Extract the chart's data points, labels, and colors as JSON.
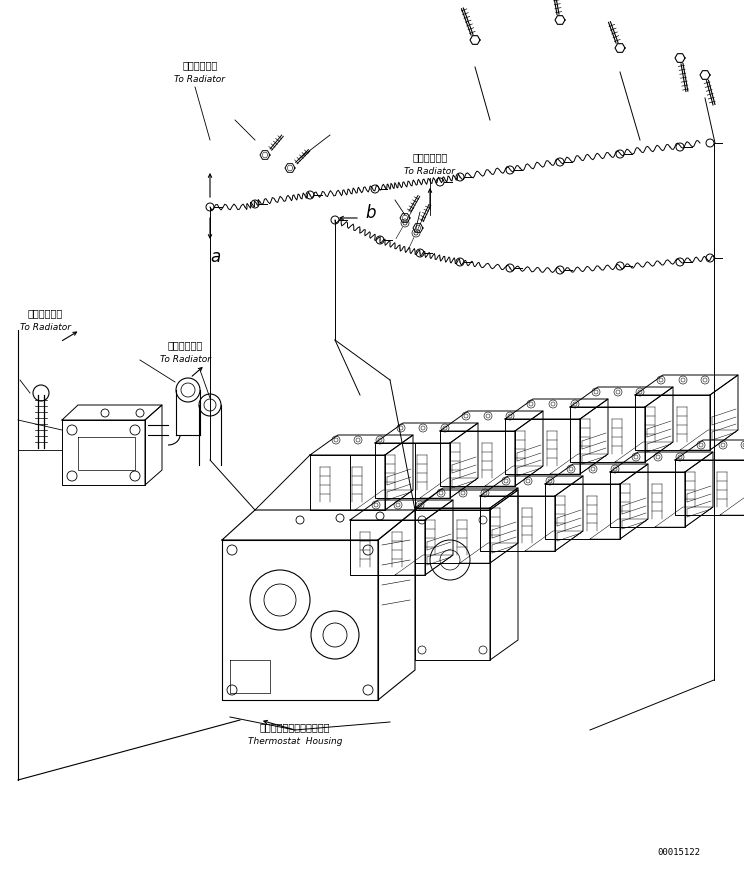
{
  "bg_color": "#ffffff",
  "line_color": "#000000",
  "fig_width": 7.44,
  "fig_height": 8.71,
  "dpi": 100,
  "part_number": "00015122",
  "labels": {
    "radiator_jp1": "ラジエータへ",
    "radiator_en1": "To Radiator",
    "radiator_jp2": "ラジエータへ",
    "radiator_en2": "To Radiator",
    "radiator_jp3": "ラジエータへ",
    "radiator_en3": "To Radiator",
    "radiator_jp4": "ラジエータへ",
    "radiator_en4": "To Radiator",
    "thermostat_jp": "サーモスタットハウジング",
    "thermostat_en": "Thermostat  Housing",
    "label_a": "a",
    "label_b": "b"
  }
}
